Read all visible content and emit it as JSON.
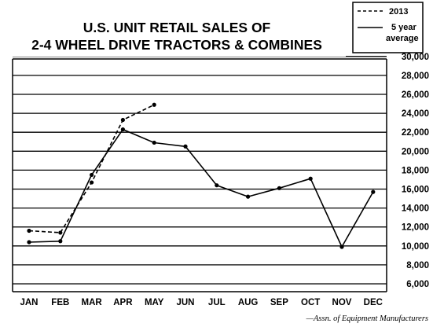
{
  "chart_data": {
    "type": "line",
    "title_lines": [
      "U.S. UNIT RETAIL SALES OF",
      "2-4 WHEEL DRIVE TRACTORS & COMBINES"
    ],
    "categories": [
      "JAN",
      "FEB",
      "MAR",
      "APR",
      "MAY",
      "JUN",
      "JUL",
      "AUG",
      "SEP",
      "OCT",
      "NOV",
      "DEC"
    ],
    "y_ticks": [
      6000,
      8000,
      10000,
      12000,
      14000,
      16000,
      18000,
      20000,
      22000,
      24000,
      26000,
      28000,
      30000
    ],
    "y_tick_labels": [
      "6,000",
      "8,000",
      "10,000",
      "12,000",
      "14,000",
      "16,000",
      "18,000",
      "20,000",
      "22,000",
      "24,000",
      "26,000",
      "28,000",
      "30,000"
    ],
    "ylim": [
      6000,
      30000
    ],
    "y_axis_side": "right",
    "grid": "horizontal",
    "legend_position": "top-right",
    "series": [
      {
        "name": "2013",
        "style": "dashed",
        "values": [
          11600,
          11400,
          16700,
          23300,
          24900,
          null,
          null,
          null,
          null,
          null,
          null,
          null
        ]
      },
      {
        "name": "5 year average",
        "name_lines": [
          "5 year",
          "average"
        ],
        "style": "solid",
        "values": [
          10400,
          10500,
          17500,
          22300,
          20900,
          20500,
          16400,
          15200,
          16100,
          17100,
          9900,
          15700
        ]
      }
    ],
    "source": "—Assn. of Equipment Manufacturers"
  }
}
